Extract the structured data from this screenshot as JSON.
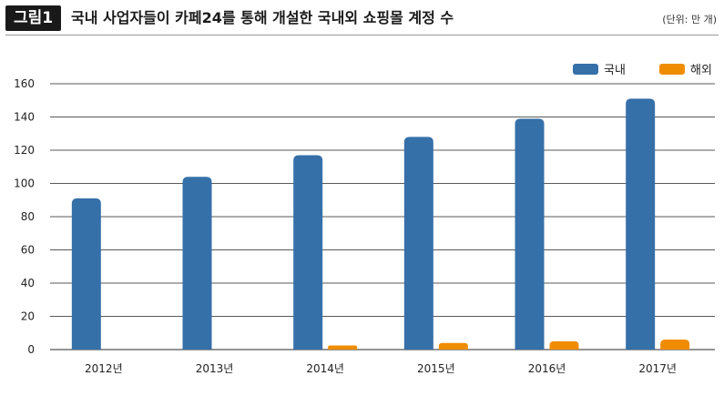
{
  "figure": {
    "badge": "그림1",
    "title": "국내 사업자들이 카페24를 통해 개설한 국내외 쇼핑몰 계정 수",
    "unit": "(단위: 만 개)"
  },
  "chart_data": {
    "type": "bar",
    "title": "국내 사업자들이 카페24를 통해 개설한 국내외 쇼핑몰 계정 수",
    "xlabel": "",
    "ylabel": "",
    "categories": [
      "2012년",
      "2013년",
      "2014년",
      "2015년",
      "2016년",
      "2017년"
    ],
    "series": [
      {
        "name": "국내",
        "color": "#3570a9",
        "values": [
          91,
          104,
          117,
          128,
          139,
          151
        ]
      },
      {
        "name": "해외",
        "color": "#f08c00",
        "values": [
          0,
          0,
          2.5,
          4,
          5,
          6
        ]
      }
    ],
    "ylim": [
      0,
      160
    ],
    "yticks": [
      0,
      20,
      40,
      60,
      80,
      100,
      120,
      140,
      160
    ],
    "grid": true,
    "legend": "top-right"
  }
}
